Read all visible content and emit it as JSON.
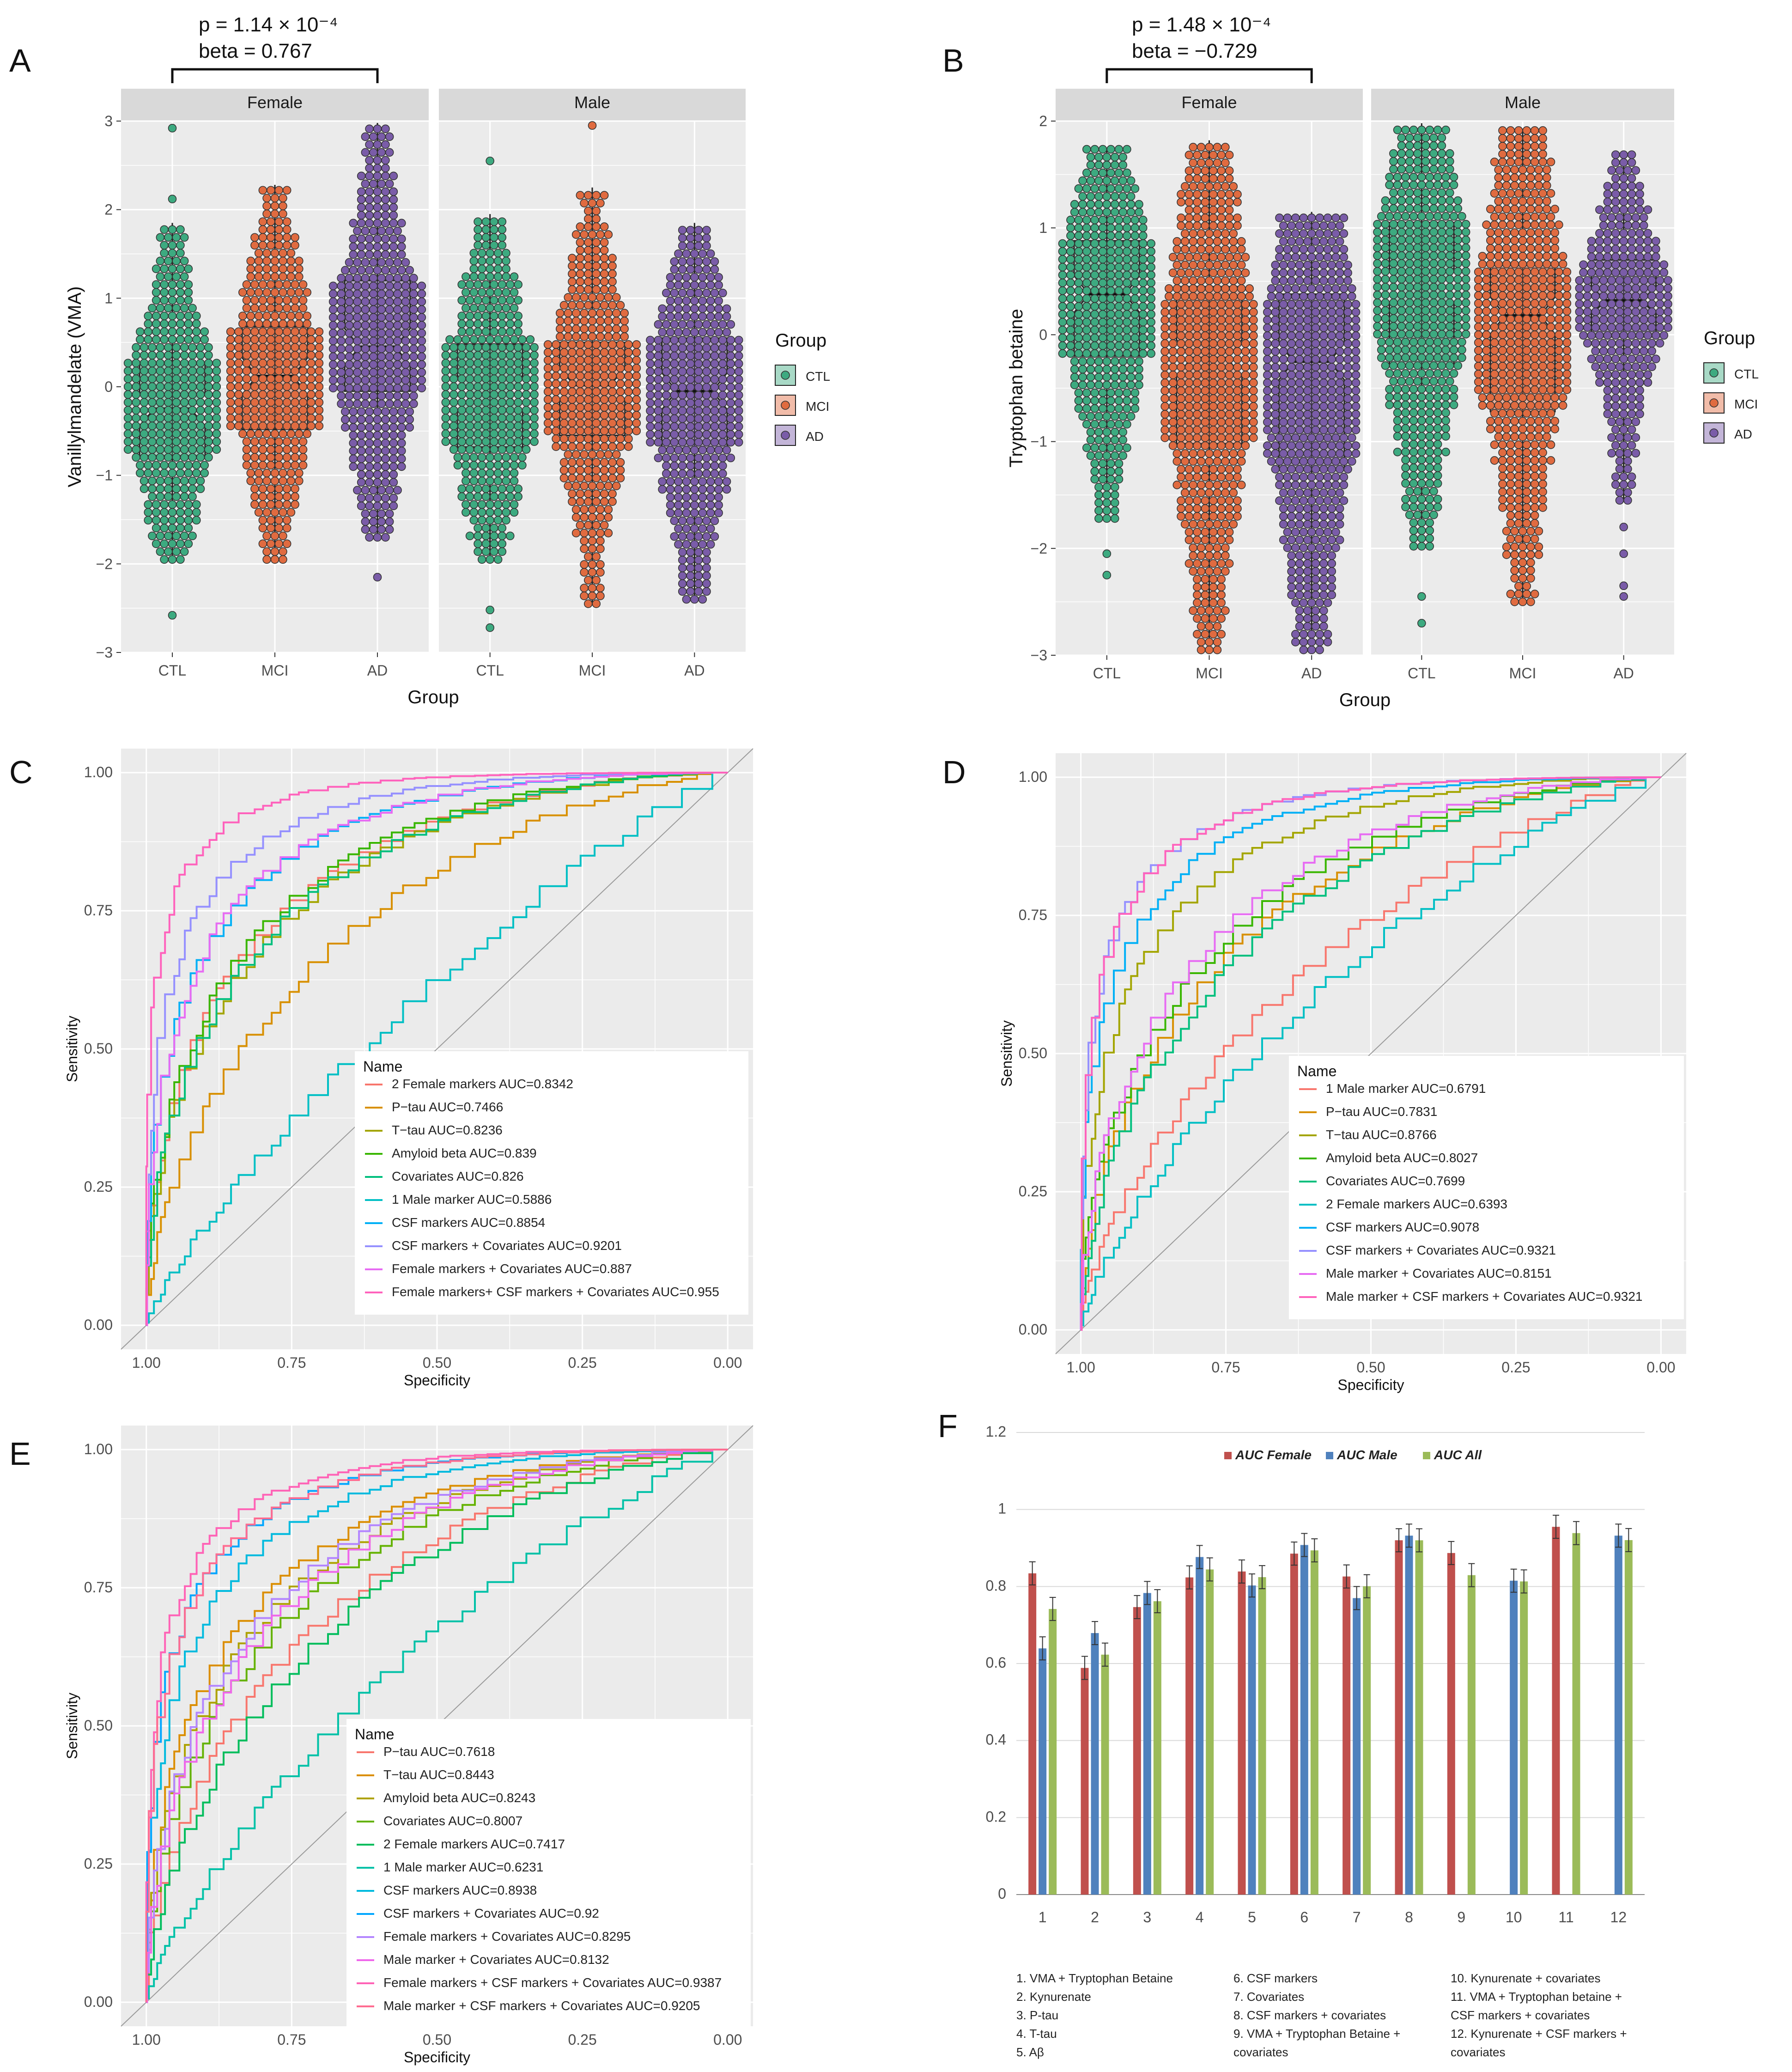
{
  "panels": {
    "A": {
      "label": "A",
      "title_note": {
        "p": "p = 1.14 × 10⁻⁴",
        "beta": "beta = 0.767"
      },
      "chart_data": {
        "type": "boxplot",
        "ylabel": "Vanillylmandelate (VMA)",
        "xlabel": "Group",
        "facets": [
          "Female",
          "Male"
        ],
        "groups": [
          "CTL",
          "MCI",
          "AD"
        ],
        "ylim": [
          -3,
          3
        ],
        "yticks": [
          3,
          2,
          1,
          0,
          -1,
          -2,
          -3
        ],
        "legend_title": "Group",
        "legend": [
          "CTL",
          "MCI",
          "AD"
        ],
        "boxes": {
          "Female": {
            "CTL": {
              "q1": -0.78,
              "med": -0.25,
              "q3": 0.27,
              "min": -1.95,
              "max": 1.85,
              "outliers": [
                2.92,
                2.12,
                -2.58
              ]
            },
            "MCI": {
              "q1": -0.48,
              "med": 0.12,
              "q3": 0.68,
              "min": -1.95,
              "max": 2.28,
              "outliers": []
            },
            "AD": {
              "q1": -0.05,
              "med": 0.45,
              "q3": 1.2,
              "min": -1.7,
              "max": 2.98,
              "outliers": [
                -2.15
              ]
            }
          },
          "Male": {
            "CTL": {
              "q1": -0.68,
              "med": -0.08,
              "q3": 0.48,
              "min": -1.95,
              "max": 1.95,
              "outliers": [
                2.55,
                -2.52,
                -2.72
              ]
            },
            "MCI": {
              "q1": -0.55,
              "med": 0.02,
              "q3": 0.5,
              "min": -2.45,
              "max": 2.25,
              "outliers": [
                2.95
              ]
            },
            "AD": {
              "q1": -0.7,
              "med": -0.05,
              "q3": 0.55,
              "min": -2.4,
              "max": 1.85,
              "outliers": []
            }
          }
        }
      }
    },
    "B": {
      "label": "B",
      "title_note": {
        "p": "p = 1.48 × 10⁻⁴",
        "beta": "beta = −0.729"
      },
      "chart_data": {
        "type": "boxplot",
        "ylabel": "Tryptophan betaine",
        "xlabel": "Group",
        "facets": [
          "Female",
          "Male"
        ],
        "groups": [
          "CTL",
          "MCI",
          "AD"
        ],
        "ylim": [
          -3,
          2
        ],
        "yticks": [
          2,
          1,
          0,
          -1,
          -2,
          -3
        ],
        "legend_title": "Group",
        "legend": [
          "CTL",
          "MCI",
          "AD"
        ],
        "boxes": {
          "Female": {
            "CTL": {
              "q1": -0.2,
              "med": 0.38,
              "q3": 0.88,
              "min": -1.72,
              "max": 1.75,
              "outliers": [
                -2.05,
                -2.25
              ]
            },
            "MCI": {
              "q1": -1.02,
              "med": -0.22,
              "q3": 0.45,
              "min": -2.95,
              "max": 1.82,
              "outliers": []
            },
            "AD": {
              "q1": -1.25,
              "med": -0.25,
              "q3": 0.38,
              "min": -2.95,
              "max": 1.15,
              "outliers": []
            }
          },
          "Male": {
            "CTL": {
              "q1": -0.28,
              "med": 0.45,
              "q3": 1.05,
              "min": -1.98,
              "max": 1.98,
              "outliers": [
                -2.45,
                -2.7
              ]
            },
            "MCI": {
              "q1": -0.72,
              "med": 0.18,
              "q3": 0.65,
              "min": -2.5,
              "max": 1.92,
              "outliers": []
            },
            "AD": {
              "q1": -0.02,
              "med": 0.32,
              "q3": 0.7,
              "min": -1.55,
              "max": 1.72,
              "outliers": [
                -1.8,
                -2.05,
                -2.35,
                -2.45
              ]
            }
          }
        }
      }
    },
    "C": {
      "label": "C",
      "chart_data": {
        "type": "line",
        "xlabel": "Specificity",
        "ylabel": "Sensitivity",
        "xlim": [
          1,
          0
        ],
        "ylim": [
          0,
          1
        ],
        "xticks": [
          "1.00",
          "0.75",
          "0.50",
          "0.25",
          "0.00"
        ],
        "yticks": [
          "1.00",
          "0.75",
          "0.50",
          "0.25",
          "0.00"
        ],
        "legend_title": "Name",
        "series": [
          {
            "name": "2 Female markers AUC=0.8342",
            "color": "#F8766D",
            "auc": 0.8342
          },
          {
            "name": "P−tau AUC=0.7466",
            "color": "#D89000",
            "auc": 0.7466
          },
          {
            "name": "T−tau AUC=0.8236",
            "color": "#A3A500",
            "auc": 0.8236
          },
          {
            "name": "Amyloid beta AUC=0.839",
            "color": "#39B600",
            "auc": 0.839
          },
          {
            "name": "Covariates AUC=0.826",
            "color": "#00BF7D",
            "auc": 0.826
          },
          {
            "name": "1 Male marker AUC=0.5886",
            "color": "#00BFC4",
            "auc": 0.5886
          },
          {
            "name": "CSF markers AUC=0.8854",
            "color": "#00B0F6",
            "auc": 0.8854
          },
          {
            "name": "CSF markers + Covariates AUC=0.9201",
            "color": "#9590FF",
            "auc": 0.9201
          },
          {
            "name": "Female markers + Covariates AUC=0.887",
            "color": "#E76BF3",
            "auc": 0.887
          },
          {
            "name": "Female markers+ CSF markers + Covariates AUC=0.955",
            "color": "#FF62BC",
            "auc": 0.955
          }
        ]
      }
    },
    "D": {
      "label": "D",
      "chart_data": {
        "type": "line",
        "xlabel": "Specificity",
        "ylabel": "Sensitivity",
        "xlim": [
          1,
          0
        ],
        "ylim": [
          0,
          1
        ],
        "xticks": [
          "1.00",
          "0.75",
          "0.50",
          "0.25",
          "0.00"
        ],
        "yticks": [
          "1.00",
          "0.75",
          "0.50",
          "0.25",
          "0.00"
        ],
        "legend_title": "Name",
        "series": [
          {
            "name": "1 Male marker AUC=0.6791",
            "color": "#F8766D",
            "auc": 0.6791
          },
          {
            "name": "P−tau AUC=0.7831",
            "color": "#D89000",
            "auc": 0.7831
          },
          {
            "name": "T−tau AUC=0.8766",
            "color": "#A3A500",
            "auc": 0.8766
          },
          {
            "name": "Amyloid beta AUC=0.8027",
            "color": "#39B600",
            "auc": 0.8027
          },
          {
            "name": "Covariates AUC=0.7699",
            "color": "#00BF7D",
            "auc": 0.7699
          },
          {
            "name": "2 Female markers AUC=0.6393",
            "color": "#00BFC4",
            "auc": 0.6393
          },
          {
            "name": "CSF markers AUC=0.9078",
            "color": "#00B0F6",
            "auc": 0.9078
          },
          {
            "name": "CSF markers + Covariates AUC=0.9321",
            "color": "#9590FF",
            "auc": 0.9321
          },
          {
            "name": "Male marker + Covariates AUC=0.8151",
            "color": "#E76BF3",
            "auc": 0.8151
          },
          {
            "name": "Male marker + CSF markers + Covariates AUC=0.9321",
            "color": "#FF62BC",
            "auc": 0.9321
          }
        ]
      }
    },
    "E": {
      "label": "E",
      "chart_data": {
        "type": "line",
        "xlabel": "Specificity",
        "ylabel": "Sensitivity",
        "xlim": [
          1,
          0
        ],
        "ylim": [
          0,
          1
        ],
        "xticks": [
          "1.00",
          "0.75",
          "0.50",
          "0.25",
          "0.00"
        ],
        "yticks": [
          "1.00",
          "0.75",
          "0.50",
          "0.25",
          "0.00"
        ],
        "legend_title": "Name",
        "series": [
          {
            "name": "P−tau AUC=0.7618",
            "color": "#F8766D",
            "auc": 0.7618
          },
          {
            "name": "T−tau AUC=0.8443",
            "color": "#DB8E00",
            "auc": 0.8443
          },
          {
            "name": "Amyloid beta AUC=0.8243",
            "color": "#AEA200",
            "auc": 0.8243
          },
          {
            "name": "Covariates AUC=0.8007",
            "color": "#64B200",
            "auc": 0.8007
          },
          {
            "name": "2 Female markers AUC=0.7417",
            "color": "#00BD5C",
            "auc": 0.7417
          },
          {
            "name": "1 Male marker AUC=0.6231",
            "color": "#00C1A7",
            "auc": 0.6231
          },
          {
            "name": "CSF markers AUC=0.8938",
            "color": "#00BADE",
            "auc": 0.8938
          },
          {
            "name": "CSF markers + Covariates AUC=0.92",
            "color": "#00A6FF",
            "auc": 0.92
          },
          {
            "name": "Female markers + Covariates AUC=0.8295",
            "color": "#B385FF",
            "auc": 0.8295
          },
          {
            "name": "Male marker + Covariates AUC=0.8132",
            "color": "#EF67EB",
            "auc": 0.8132
          },
          {
            "name": "Female markers + CSF markers + Covariates AUC=0.9387",
            "color": "#FF63B6",
            "auc": 0.9387
          },
          {
            "name": "Male marker + CSF markers + Covariates AUC=0.9205",
            "color": "#FF6C91",
            "auc": 0.9205
          }
        ]
      }
    },
    "F": {
      "label": "F",
      "chart_data": {
        "type": "bar",
        "categories": [
          "1",
          "2",
          "3",
          "4",
          "5",
          "6",
          "7",
          "8",
          "9",
          "10",
          "11",
          "12"
        ],
        "ylim": [
          0,
          1.2
        ],
        "yticks": [
          "1.2",
          "1",
          "0.8",
          "0.6",
          "0.4",
          "0.2",
          "0"
        ],
        "series": [
          {
            "name": "AUC Female",
            "color": "#C0504D",
            "values": [
              0.8342,
              0.5886,
              0.7466,
              0.8236,
              0.839,
              0.8854,
              0.826,
              0.9201,
              0.887,
              null,
              0.955,
              null
            ]
          },
          {
            "name": "AUC Male",
            "color": "#4F81BD",
            "values": [
              0.6393,
              0.6791,
              0.7831,
              0.8766,
              0.8027,
              0.9078,
              0.7699,
              0.9321,
              null,
              0.8151,
              null,
              0.9321
            ]
          },
          {
            "name": "AUC All",
            "color": "#9BBB59",
            "values": [
              0.7417,
              0.6231,
              0.7618,
              0.8443,
              0.8243,
              0.8938,
              0.8007,
              0.92,
              0.8295,
              0.8132,
              0.9387,
              0.9205
            ]
          }
        ],
        "captions": [
          [
            "1. VMA + Tryptophan Betaine",
            "2. Kynurenate",
            "3. P-tau",
            "4. T-tau",
            "5. Aβ"
          ],
          [
            "6. CSF markers",
            "7. Covariates",
            "8. CSF markers + covariates",
            "9. VMA + Tryptophan Betaine +",
            "covariates"
          ],
          [
            "10. Kynurenate + covariates",
            "11. VMA + Tryptophan betaine +",
            "CSF markers + covariates",
            "12. Kynurenate + CSF markers +",
            "covariates"
          ]
        ]
      }
    }
  }
}
